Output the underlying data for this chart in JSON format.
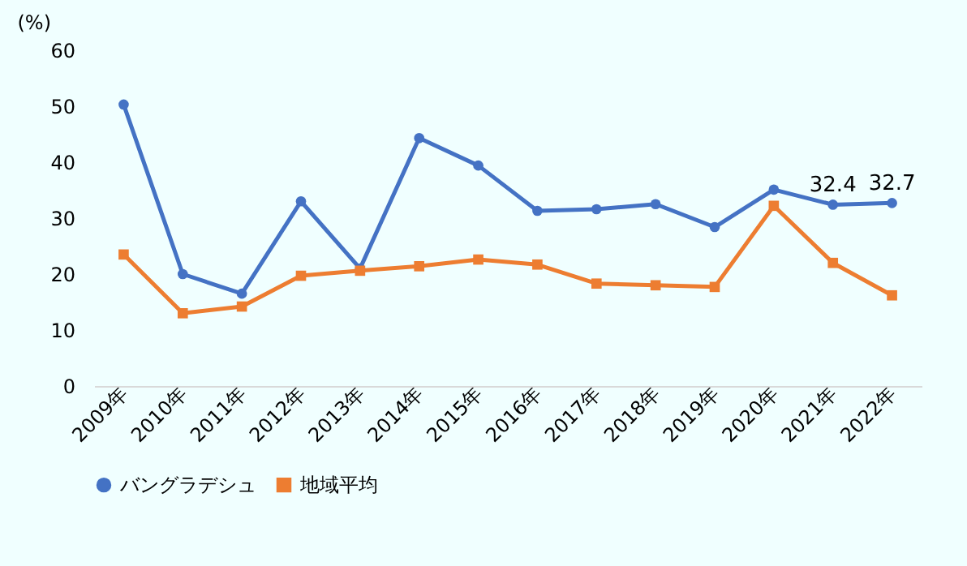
{
  "chart_data": {
    "type": "line",
    "ylabel": "(%)",
    "categories": [
      "2009年",
      "2010年",
      "2011年",
      "2012年",
      "2013年",
      "2014年",
      "2015年",
      "2016年",
      "2017年",
      "2018年",
      "2019年",
      "2020年",
      "2021年",
      "2022年"
    ],
    "series": [
      {
        "name": "バングラデシュ",
        "color": "#4472c4",
        "marker": "circle",
        "values": [
          50.3,
          20.0,
          16.5,
          33.0,
          21.0,
          44.3,
          39.4,
          31.3,
          31.6,
          32.5,
          28.4,
          35.1,
          32.4,
          32.7
        ],
        "value_labels": [
          null,
          null,
          null,
          null,
          null,
          null,
          null,
          null,
          null,
          null,
          null,
          null,
          "32.4",
          "32.7"
        ]
      },
      {
        "name": "地域平均",
        "color": "#ed7d31",
        "marker": "square",
        "values": [
          23.5,
          13.0,
          14.2,
          19.7,
          20.6,
          21.4,
          22.6,
          21.7,
          18.3,
          18.0,
          17.7,
          32.2,
          22.0,
          16.2
        ]
      }
    ],
    "ylim": [
      0,
      60
    ],
    "yticks": [
      0,
      10,
      20,
      30,
      40,
      50,
      60
    ],
    "grid": false,
    "legend": "bottom"
  }
}
